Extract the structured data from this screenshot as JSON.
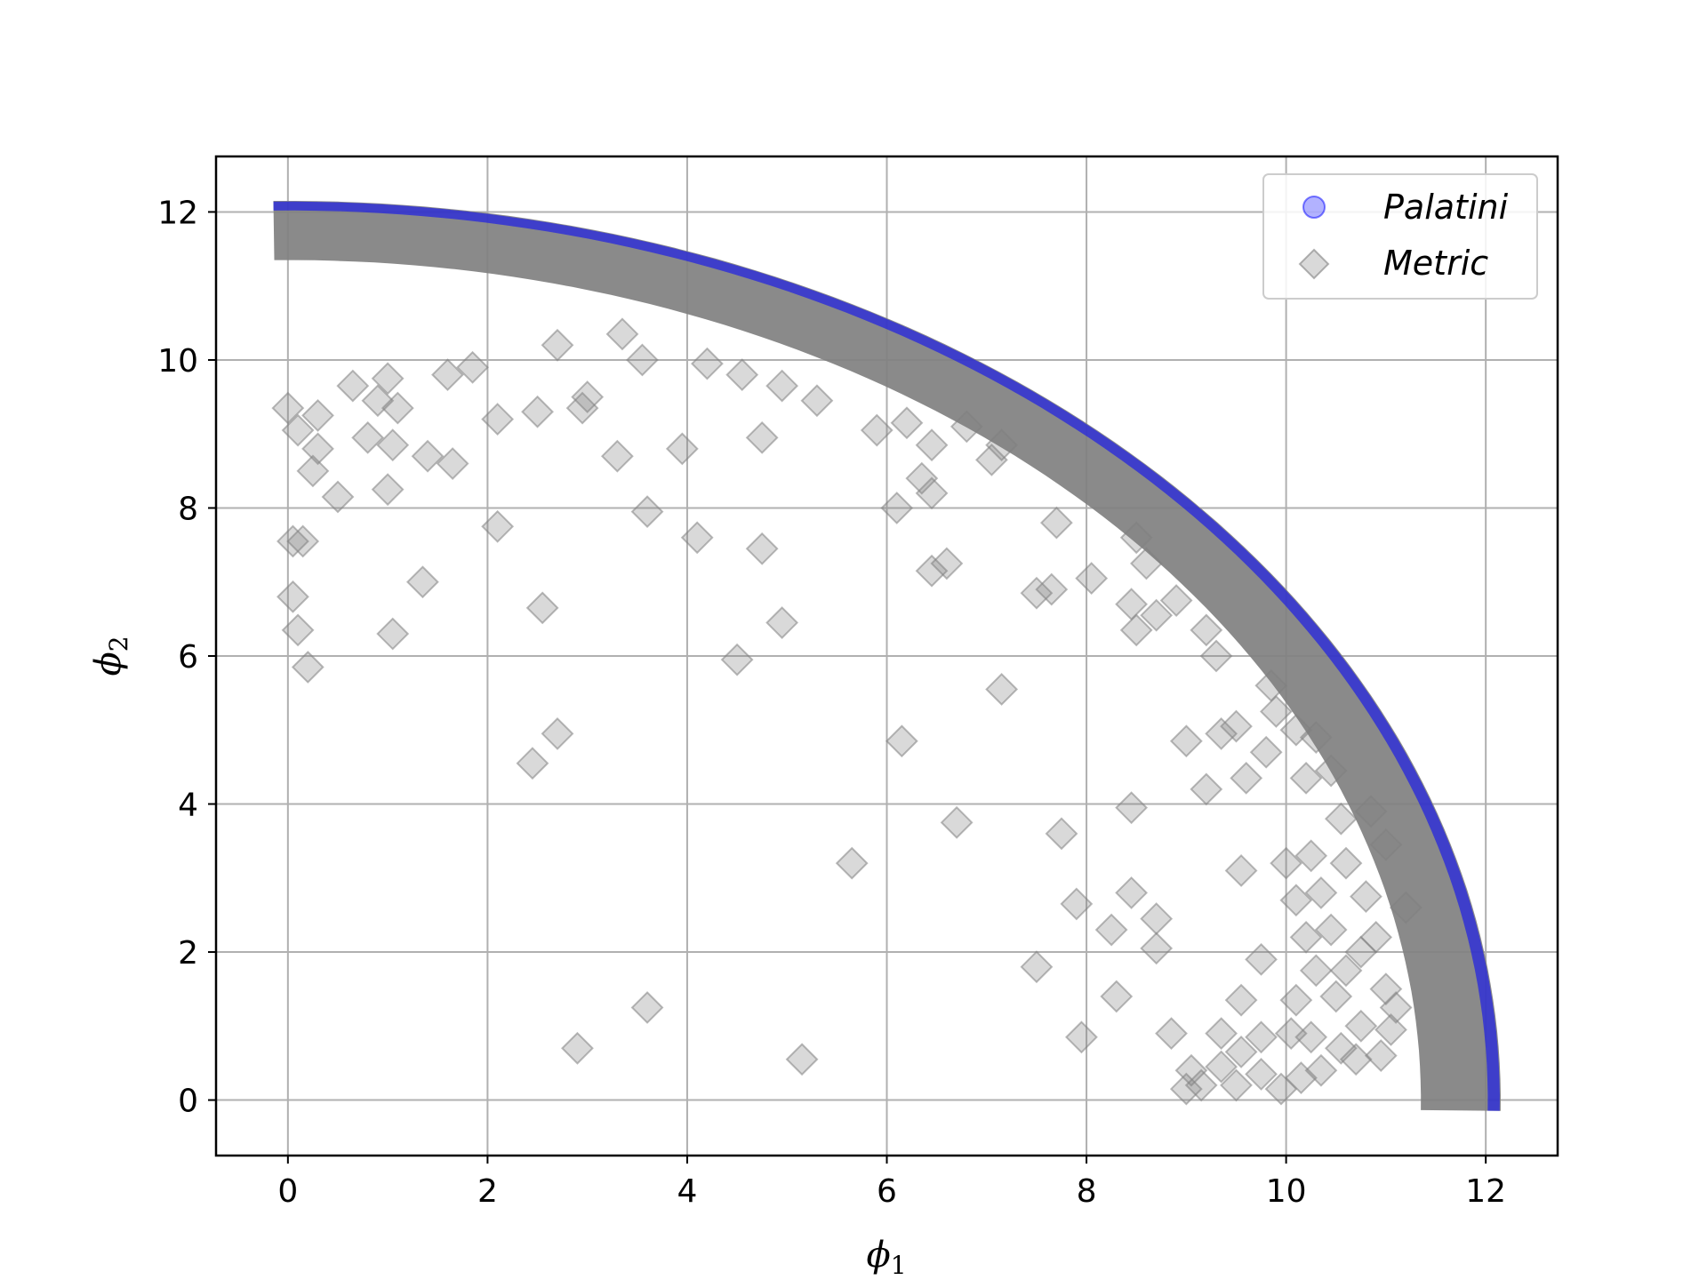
{
  "chart_data": {
    "type": "scatter",
    "title": "",
    "xlabel": "ϕ",
    "xlabel_sub": "1",
    "ylabel": "ϕ",
    "ylabel_sub": "2",
    "xlim": [
      -0.72,
      12.72
    ],
    "ylim": [
      -0.75,
      12.75
    ],
    "xticks": [
      0,
      2,
      4,
      6,
      8,
      10,
      12
    ],
    "yticks": [
      0,
      2,
      4,
      6,
      8,
      10,
      12
    ],
    "grid": true,
    "legend_position": "top-right",
    "series": [
      {
        "name": "Palatini",
        "marker": "circle",
        "color": "#0000ff",
        "alpha": 0.3,
        "band": {
          "r_inner": 12.02,
          "r_outer": 12.12
        },
        "points": []
      },
      {
        "name": "Metric",
        "marker": "diamond",
        "color": "#808080",
        "alpha": 0.3,
        "band": {
          "r_inner": 11.35,
          "r_outer": 12.15
        },
        "points": [
          [
            2.9,
            0.7
          ],
          [
            5.15,
            0.55
          ],
          [
            3.6,
            1.25
          ],
          [
            5.65,
            3.2
          ],
          [
            2.45,
            4.55
          ],
          [
            2.7,
            4.95
          ],
          [
            2.55,
            6.65
          ],
          [
            1.05,
            6.3
          ],
          [
            1.35,
            7.0
          ],
          [
            0.2,
            5.85
          ],
          [
            0.1,
            6.35
          ],
          [
            0.05,
            6.8
          ],
          [
            0.05,
            7.55
          ],
          [
            0.15,
            7.55
          ],
          [
            2.1,
            7.75
          ],
          [
            0.5,
            8.15
          ],
          [
            1.0,
            8.25
          ],
          [
            0.25,
            8.5
          ],
          [
            1.65,
            8.6
          ],
          [
            1.4,
            8.7
          ],
          [
            0.3,
            8.8
          ],
          [
            1.05,
            8.85
          ],
          [
            0.8,
            8.95
          ],
          [
            0.3,
            9.25
          ],
          [
            0.0,
            9.35
          ],
          [
            2.1,
            9.2
          ],
          [
            2.5,
            9.3
          ],
          [
            2.95,
            9.35
          ],
          [
            3.0,
            9.5
          ],
          [
            3.3,
            8.7
          ],
          [
            3.6,
            7.95
          ],
          [
            4.1,
            7.6
          ],
          [
            4.5,
            5.95
          ],
          [
            4.95,
            6.45
          ],
          [
            4.75,
            7.45
          ],
          [
            4.75,
            8.95
          ],
          [
            3.95,
            8.8
          ],
          [
            4.95,
            9.65
          ],
          [
            5.3,
            9.45
          ],
          [
            4.55,
            9.8
          ],
          [
            4.2,
            9.95
          ],
          [
            3.55,
            10.0
          ],
          [
            3.35,
            10.35
          ],
          [
            2.7,
            10.2
          ],
          [
            1.6,
            9.8
          ],
          [
            1.85,
            9.9
          ],
          [
            0.65,
            9.65
          ],
          [
            0.9,
            9.45
          ],
          [
            1.0,
            9.75
          ],
          [
            1.1,
            9.35
          ],
          [
            0.1,
            9.05
          ],
          [
            6.1,
            8.0
          ],
          [
            6.15,
            4.85
          ],
          [
            6.7,
            3.75
          ],
          [
            7.15,
            5.55
          ],
          [
            7.5,
            1.8
          ],
          [
            7.75,
            3.6
          ],
          [
            7.9,
            2.65
          ],
          [
            8.25,
            2.3
          ],
          [
            8.3,
            1.4
          ],
          [
            7.95,
            0.85
          ],
          [
            8.45,
            2.8
          ],
          [
            8.7,
            2.45
          ],
          [
            8.7,
            2.05
          ],
          [
            8.85,
            0.9
          ],
          [
            8.45,
            3.95
          ],
          [
            9.2,
            4.2
          ],
          [
            9.55,
            3.1
          ],
          [
            9.6,
            4.35
          ],
          [
            9.75,
            1.9
          ],
          [
            9.55,
            1.35
          ],
          [
            9.8,
            4.7
          ],
          [
            10.0,
            3.2
          ],
          [
            10.1,
            2.7
          ],
          [
            10.2,
            2.2
          ],
          [
            10.25,
            3.3
          ],
          [
            10.35,
            2.8
          ],
          [
            10.3,
            1.75
          ],
          [
            10.1,
            1.35
          ],
          [
            10.05,
            0.9
          ],
          [
            10.25,
            0.85
          ],
          [
            10.5,
            1.4
          ],
          [
            10.45,
            2.3
          ],
          [
            10.6,
            3.2
          ],
          [
            10.6,
            1.75
          ],
          [
            10.75,
            2.0
          ],
          [
            10.8,
            2.75
          ],
          [
            10.9,
            2.2
          ],
          [
            11.0,
            1.5
          ],
          [
            11.05,
            0.95
          ],
          [
            10.95,
            0.6
          ],
          [
            10.7,
            0.55
          ],
          [
            10.35,
            0.4
          ],
          [
            10.15,
            0.3
          ],
          [
            9.95,
            0.15
          ],
          [
            9.75,
            0.35
          ],
          [
            9.5,
            0.2
          ],
          [
            9.35,
            0.45
          ],
          [
            9.15,
            0.2
          ],
          [
            9.05,
            0.4
          ],
          [
            9.0,
            0.15
          ],
          [
            9.75,
            0.85
          ],
          [
            9.55,
            0.65
          ],
          [
            9.35,
            0.9
          ],
          [
            10.55,
            0.7
          ],
          [
            10.75,
            1.0
          ],
          [
            11.1,
            1.25
          ],
          [
            11.2,
            2.6
          ],
          [
            11.0,
            3.45
          ],
          [
            10.85,
            3.9
          ],
          [
            10.45,
            4.45
          ],
          [
            10.3,
            4.9
          ],
          [
            10.1,
            5.0
          ],
          [
            10.2,
            4.35
          ],
          [
            9.9,
            5.25
          ],
          [
            9.5,
            5.05
          ],
          [
            9.35,
            4.95
          ],
          [
            9.0,
            4.85
          ],
          [
            9.2,
            6.35
          ],
          [
            8.9,
            6.75
          ],
          [
            8.7,
            6.55
          ],
          [
            8.5,
            6.35
          ],
          [
            8.45,
            6.7
          ],
          [
            8.6,
            7.25
          ],
          [
            8.05,
            7.05
          ],
          [
            7.65,
            6.9
          ],
          [
            7.5,
            6.85
          ],
          [
            7.7,
            7.8
          ],
          [
            6.6,
            7.25
          ],
          [
            6.45,
            7.15
          ],
          [
            6.45,
            8.2
          ],
          [
            6.35,
            8.4
          ],
          [
            6.45,
            8.85
          ],
          [
            6.2,
            9.15
          ],
          [
            5.9,
            9.05
          ],
          [
            6.8,
            9.1
          ],
          [
            7.05,
            8.65
          ],
          [
            7.15,
            8.85
          ],
          [
            8.5,
            7.6
          ],
          [
            9.3,
            6.0
          ],
          [
            9.85,
            5.6
          ],
          [
            10.55,
            3.8
          ]
        ]
      }
    ]
  }
}
